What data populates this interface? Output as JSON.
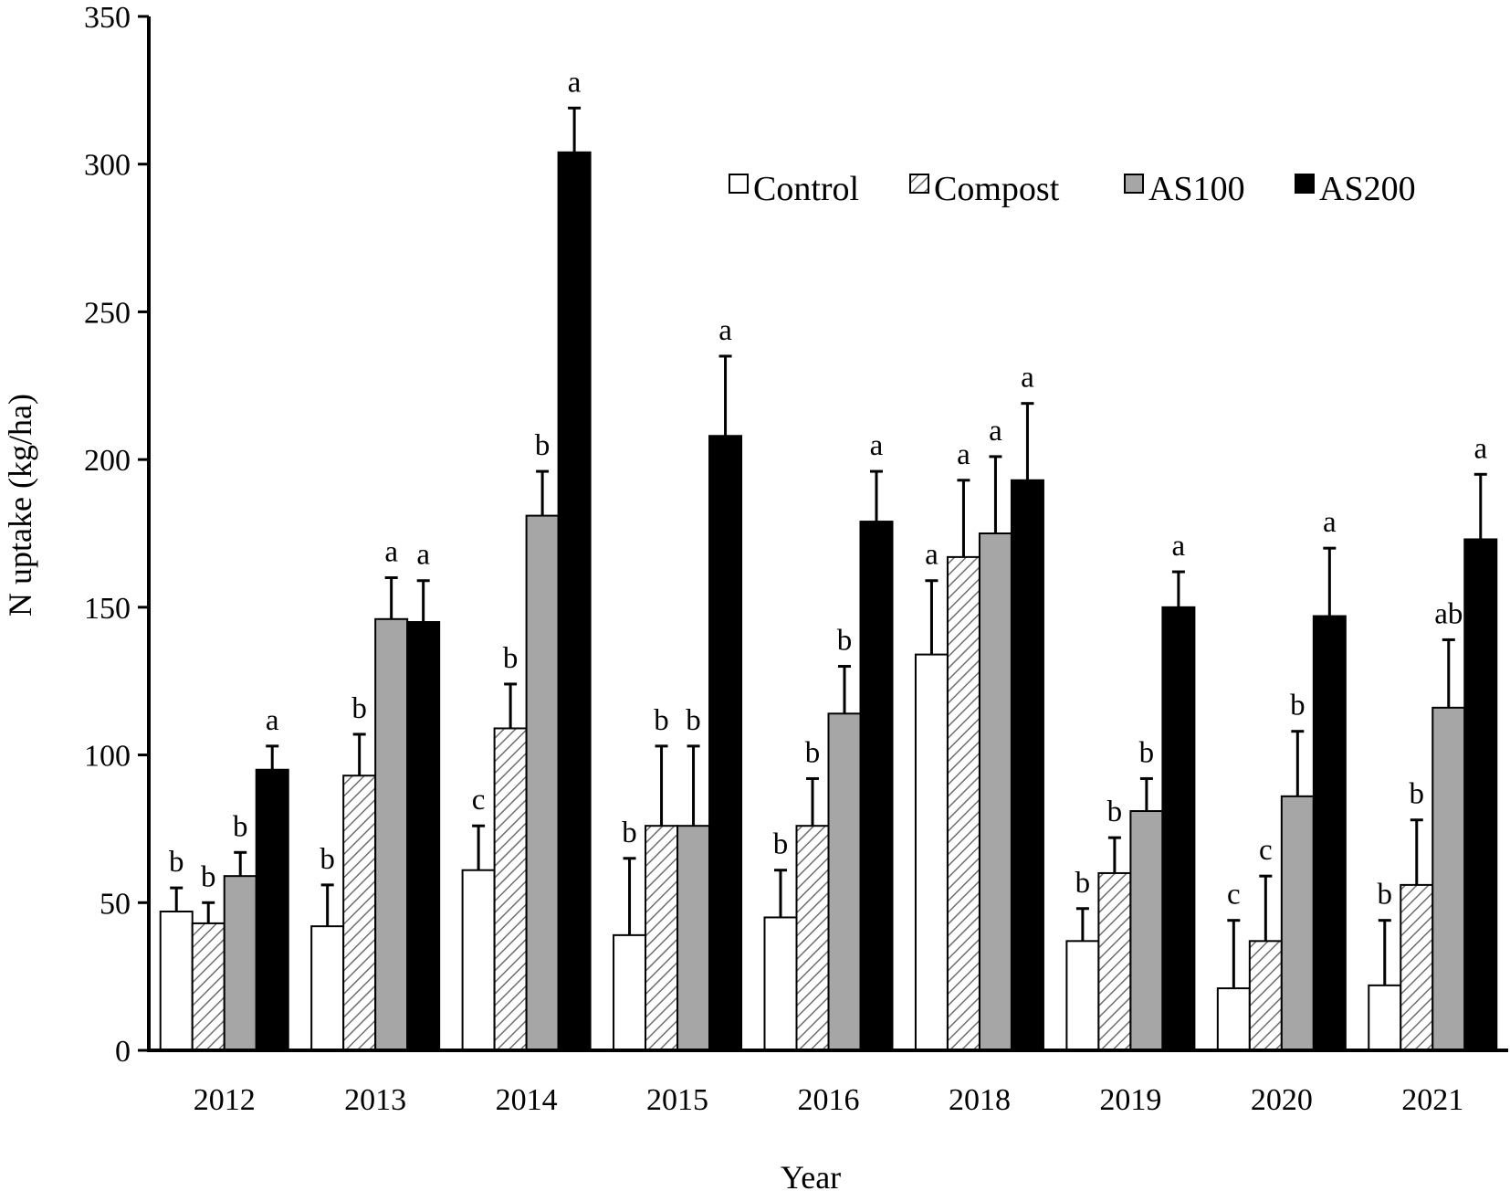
{
  "chart_data": {
    "type": "bar",
    "title": "",
    "xlabel": "Year",
    "ylabel": "N uptake (kg/ha)",
    "ylim": [
      0,
      350
    ],
    "yticks": [
      0,
      50,
      100,
      150,
      200,
      250,
      300,
      350
    ],
    "grid": false,
    "legend_position": "top-right",
    "categories": [
      "2012",
      "2013",
      "2014",
      "2015",
      "2016",
      "2018",
      "2019",
      "2020",
      "2021"
    ],
    "series": [
      {
        "name": "Control",
        "fill": "#ffffff",
        "pattern": "none",
        "values": [
          47,
          42,
          61,
          39,
          45,
          134,
          37,
          21,
          22
        ],
        "error": [
          8,
          14,
          15,
          26,
          16,
          25,
          11,
          23,
          22
        ],
        "letters": [
          "b",
          "b",
          "c",
          "b",
          "b",
          "a",
          "b",
          "c",
          "b"
        ]
      },
      {
        "name": "Compost",
        "fill": "#ffffff",
        "pattern": "diagonal-hatch",
        "values": [
          43,
          93,
          109,
          76,
          76,
          167,
          60,
          37,
          56
        ],
        "error": [
          7,
          14,
          15,
          27,
          16,
          26,
          12,
          22,
          22
        ],
        "letters": [
          "b",
          "b",
          "b",
          "b",
          "b",
          "a",
          "b",
          "c",
          "b"
        ]
      },
      {
        "name": "AS100",
        "fill": "#a6a6a6",
        "pattern": "none",
        "values": [
          59,
          146,
          181,
          76,
          114,
          175,
          81,
          86,
          116
        ],
        "error": [
          8,
          14,
          15,
          27,
          16,
          26,
          11,
          22,
          23
        ],
        "letters": [
          "b",
          "a",
          "b",
          "b",
          "b",
          "a",
          "b",
          "b",
          "ab"
        ]
      },
      {
        "name": "AS200",
        "fill": "#000000",
        "pattern": "none",
        "values": [
          95,
          145,
          304,
          208,
          179,
          193,
          150,
          147,
          173
        ],
        "error": [
          8,
          14,
          15,
          27,
          17,
          26,
          12,
          23,
          22
        ],
        "letters": [
          "a",
          "a",
          "a",
          "a",
          "a",
          "a",
          "a",
          "a",
          "a"
        ]
      }
    ]
  }
}
